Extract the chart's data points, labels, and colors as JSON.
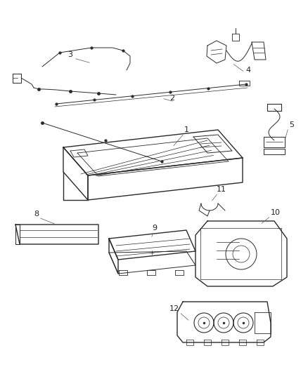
{
  "bg_color": "#ffffff",
  "line_color": "#2a2a2a",
  "label_color": "#222222",
  "fig_width": 4.38,
  "fig_height": 5.33,
  "dpi": 100
}
